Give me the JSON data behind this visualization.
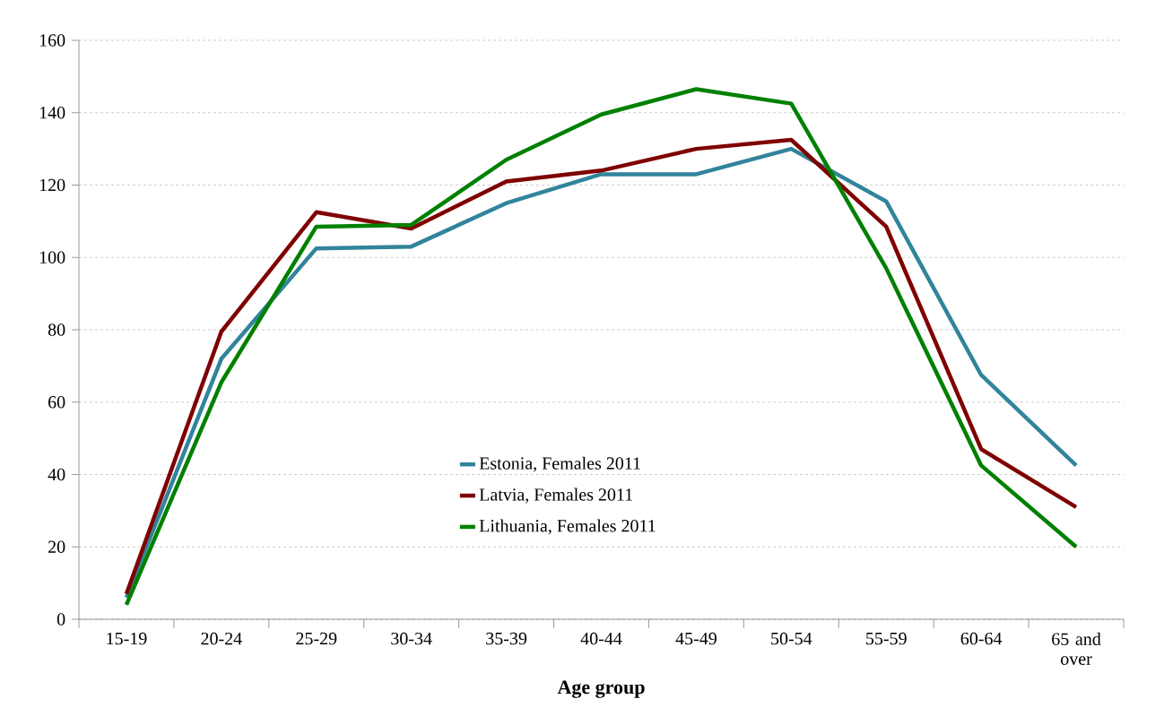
{
  "chart_data": {
    "type": "line",
    "xlabel": "Age group",
    "categories": [
      "15-19",
      "20-24",
      "25-29",
      "30-34",
      "35-39",
      "40-44",
      "45-49",
      "50-54",
      "55-59",
      "60-64",
      "65 and over"
    ],
    "series": [
      {
        "name": "Estonia, Females 2011",
        "color": "#31849b",
        "values": [
          6,
          72,
          102.5,
          103,
          115,
          123,
          123,
          130,
          115.5,
          67.5,
          42.5
        ]
      },
      {
        "name": "Latvia, Females 2011",
        "color": "#7f0000",
        "values": [
          7,
          79.5,
          112.5,
          108,
          121,
          124,
          130,
          132.5,
          108.5,
          47,
          31
        ]
      },
      {
        "name": "Lithuania, Females 2011",
        "color": "#008000",
        "values": [
          4,
          65.5,
          108.5,
          109,
          127,
          139.5,
          146.5,
          142.5,
          97,
          42.5,
          20
        ]
      }
    ],
    "ylim": [
      0,
      160
    ],
    "yticks": [
      0,
      20,
      40,
      60,
      80,
      100,
      120,
      140,
      160
    ],
    "grid": "y",
    "legend": "bottom",
    "marker": "none",
    "line_style": "solid"
  }
}
